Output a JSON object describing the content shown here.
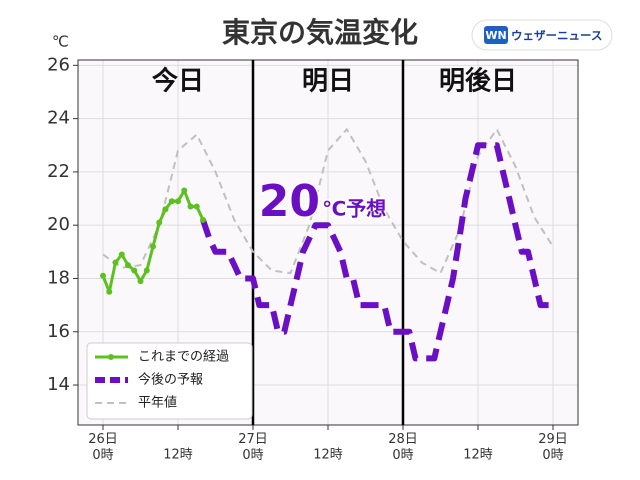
{
  "chart_data": {
    "type": "line",
    "title": "東京の気温変化",
    "y_unit": "℃",
    "logo": "ウェザーニュース",
    "logo_icon": "WN",
    "day_labels": [
      {
        "x": 12,
        "text": "今日"
      },
      {
        "x": 36,
        "text": "明日"
      },
      {
        "x": 60,
        "text": "明後日"
      }
    ],
    "annotation": {
      "x": 36,
      "y": 20.8,
      "big": "20",
      "small": "℃予想"
    },
    "xlim": [
      -4,
      76
    ],
    "ylim": [
      12.5,
      26.2
    ],
    "xticks": [
      {
        "value": 0,
        "label": "26日\n0時"
      },
      {
        "value": 12,
        "label": "12時"
      },
      {
        "value": 24,
        "label": "27日\n0時"
      },
      {
        "value": 36,
        "label": "12時"
      },
      {
        "value": 48,
        "label": "28日\n0時"
      },
      {
        "value": 60,
        "label": "12時"
      },
      {
        "value": 72,
        "label": "29日\n0時"
      }
    ],
    "yticks": [
      14,
      16,
      18,
      20,
      22,
      24,
      26
    ],
    "dividers": [
      24,
      48
    ],
    "grid": true,
    "legend": "lower left",
    "series": [
      {
        "name": "これまでの経過",
        "color": "#5cc01e",
        "style": "solid-dots",
        "x": [
          0,
          1,
          2,
          3,
          4,
          5,
          6,
          7,
          8,
          9,
          10,
          11,
          12,
          13,
          14,
          15,
          16
        ],
        "values": [
          18.1,
          17.5,
          18.6,
          18.9,
          18.5,
          18.3,
          17.9,
          18.3,
          19.2,
          20.1,
          20.6,
          20.9,
          20.9,
          21.3,
          20.7,
          20.7,
          20.2
        ]
      },
      {
        "name": "今後の予報",
        "color": "#6a0fc4",
        "style": "thick-dash",
        "x": [
          16,
          17,
          18,
          19,
          20,
          21,
          22,
          23,
          24,
          25,
          26,
          27,
          28,
          29,
          30,
          31,
          32,
          33,
          34,
          35,
          36,
          37,
          38,
          39,
          40,
          41,
          42,
          43,
          44,
          45,
          46,
          47,
          48,
          49,
          50,
          51,
          52,
          53,
          54,
          55,
          56,
          57,
          58,
          59,
          60,
          61,
          62,
          63,
          64,
          65,
          66,
          67,
          68,
          69,
          70,
          71,
          72
        ],
        "values": [
          20.2,
          19.5,
          19,
          19,
          19,
          18.5,
          18,
          18,
          18,
          17,
          17,
          17,
          16,
          16,
          17,
          18,
          19,
          19.5,
          20,
          20,
          20,
          19.5,
          19,
          18,
          18,
          17,
          17,
          17,
          17,
          17,
          16,
          16,
          16,
          16,
          15,
          15,
          15,
          15,
          16,
          17,
          18,
          19.5,
          21,
          22,
          23,
          23,
          23,
          23,
          22,
          21,
          20,
          19,
          19,
          18,
          17,
          17,
          17
        ]
      },
      {
        "name": "平年値",
        "color": "#c0c0c0",
        "style": "thin-dash",
        "x": [
          0,
          3,
          6,
          9,
          12,
          15,
          18,
          21,
          24,
          27,
          30,
          33,
          36,
          39,
          42,
          45,
          48,
          51,
          54,
          57,
          60,
          63,
          66,
          69,
          72
        ],
        "values": [
          18.9,
          18.4,
          18.5,
          20.0,
          22.8,
          23.4,
          22.0,
          20.2,
          19.0,
          18.3,
          18.2,
          20.0,
          22.8,
          23.6,
          22.4,
          20.6,
          19.4,
          18.6,
          18.2,
          19.8,
          22.6,
          23.6,
          22.2,
          20.3,
          19.2
        ]
      }
    ]
  }
}
